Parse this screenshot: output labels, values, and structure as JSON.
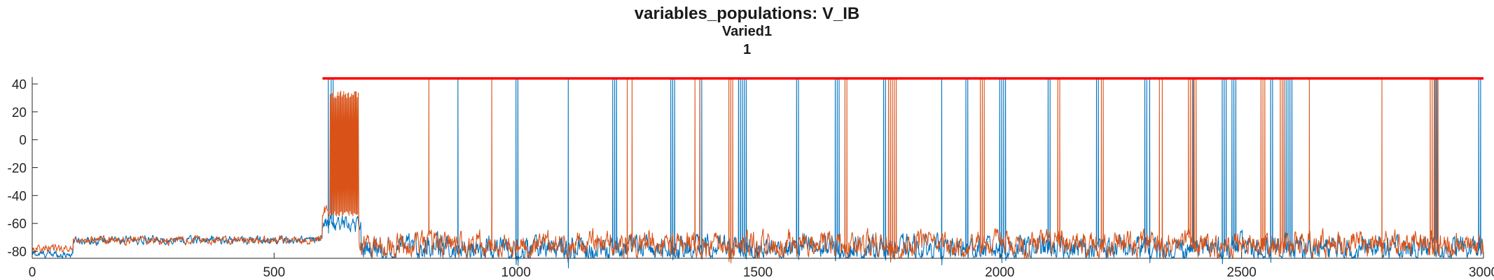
{
  "chart_data": {
    "type": "line",
    "title": "variables_populations: V_IB",
    "subtitle_lines": [
      "Varied1",
      "1"
    ],
    "xlim": [
      0,
      3000
    ],
    "ylim": [
      -85,
      45
    ],
    "xticks": [
      0,
      500,
      1000,
      1500,
      2000,
      2500,
      3000
    ],
    "yticks": [
      40,
      20,
      0,
      -20,
      -40,
      -60,
      -80
    ],
    "grid": false,
    "legend": "none",
    "series": [
      {
        "color": "#0072BD",
        "baseline_segments": [
          [
            0,
            85,
            -82
          ],
          [
            85,
            600,
            -72
          ],
          [
            600,
            680,
            -60
          ],
          [
            680,
            3000,
            -78
          ]
        ],
        "spike_times": [
          612,
          618,
          622,
          880,
          1000,
          1004,
          1108,
          1200,
          1204,
          1208,
          1320,
          1324,
          1328,
          1380,
          1384,
          1460,
          1464,
          1468,
          1472,
          1476,
          1580,
          1584,
          1660,
          1664,
          1668,
          1760,
          1764,
          1880,
          1930,
          1934,
          2000,
          2004,
          2008,
          2012,
          2100,
          2104,
          2200,
          2204,
          2300,
          2304,
          2310,
          2400,
          2460,
          2464,
          2468,
          2480,
          2484,
          2488,
          2560,
          2564,
          2588,
          2592,
          2596,
          2600,
          2604,
          2900,
          2904,
          2990,
          2994
        ]
      },
      {
        "color": "#D95319",
        "baseline_segments": [
          [
            0,
            85,
            -78
          ],
          [
            85,
            600,
            -72
          ],
          [
            600,
            675,
            -52
          ],
          [
            675,
            3000,
            -75
          ]
        ],
        "burst": {
          "start": 615,
          "end": 675,
          "low": -55,
          "high": 35
        },
        "spike_times": [
          820,
          950,
          1230,
          1240,
          1370,
          1380,
          1440,
          1444,
          1448,
          1680,
          1684,
          1770,
          1774,
          1778,
          1782,
          1786,
          1960,
          1964,
          1968,
          2120,
          2124,
          2210,
          2214,
          2330,
          2336,
          2390,
          2394,
          2398,
          2402,
          2406,
          2540,
          2544,
          2548,
          2580,
          2584,
          2588,
          2640,
          2790,
          2890,
          2894,
          2898,
          2902,
          2906
        ]
      }
    ],
    "threshold_line": {
      "color": "#FF0000",
      "y": 44,
      "x_range": [
        600,
        3000
      ]
    }
  }
}
